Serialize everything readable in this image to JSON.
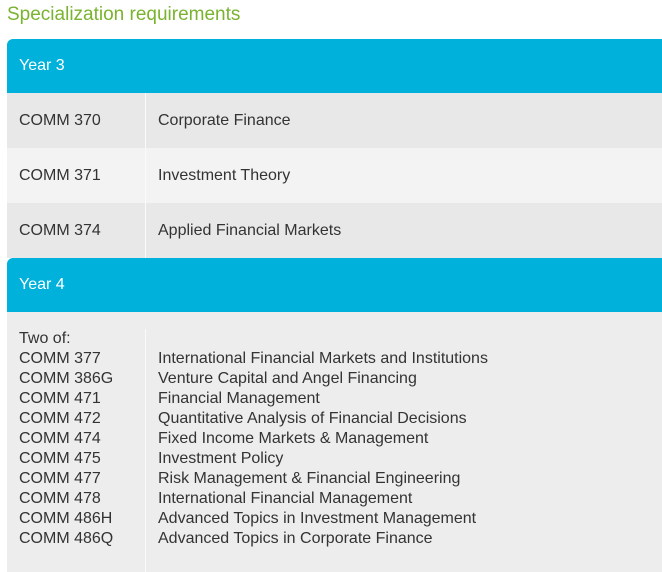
{
  "title": "Specialization requirements",
  "year3": {
    "label": "Year 3",
    "rows": [
      {
        "code": "COMM 370",
        "name": "Corporate Finance"
      },
      {
        "code": "COMM 371",
        "name": "Investment Theory"
      },
      {
        "code": "COMM 374",
        "name": "Applied Financial Markets"
      }
    ]
  },
  "year4": {
    "label": "Year 4",
    "intro": "Two of:",
    "rows": [
      {
        "code": "COMM 377",
        "name": "International Financial Markets and Institutions"
      },
      {
        "code": "COMM 386G",
        "name": "Venture Capital and Angel Financing"
      },
      {
        "code": "COMM 471",
        "name": "Financial Management"
      },
      {
        "code": "COMM 472",
        "name": "Quantitative Analysis of Financial Decisions"
      },
      {
        "code": "COMM 474",
        "name": "Fixed Income Markets & Management"
      },
      {
        "code": "COMM 475",
        "name": "Investment Policy"
      },
      {
        "code": "COMM 477",
        "name": "Risk Management & Financial Engineering"
      },
      {
        "code": "COMM 478",
        "name": "International Financial Management"
      },
      {
        "code": "COMM 486H",
        "name": "Advanced Topics in Investment Management"
      },
      {
        "code": "COMM 486Q",
        "name": "Advanced Topics in Corporate Finance"
      }
    ]
  }
}
